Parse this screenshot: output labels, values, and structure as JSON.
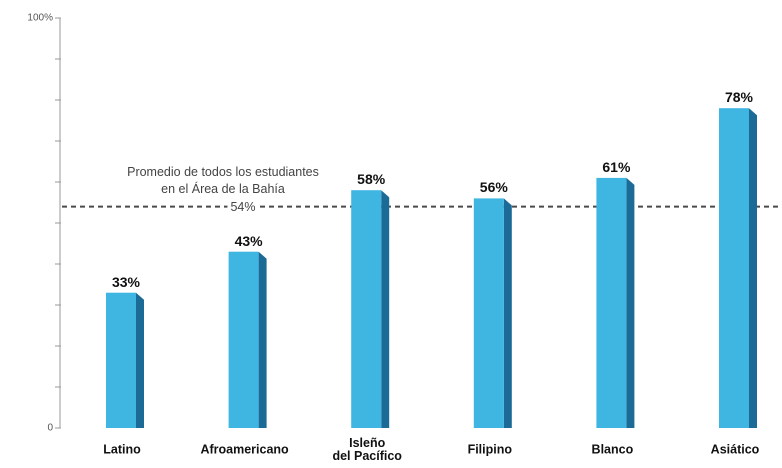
{
  "chart_data": {
    "type": "bar",
    "categories": [
      "Latino",
      "Afroamericano",
      "Isleño\ndel Pacífico",
      "Filipino",
      "Blanco",
      "Asiático"
    ],
    "values": [
      33,
      43,
      58,
      56,
      61,
      78
    ],
    "data_labels": [
      "33%",
      "43%",
      "58%",
      "56%",
      "61%",
      "78%"
    ],
    "ylim": [
      0,
      100
    ],
    "y_ticks": [
      0,
      10,
      20,
      30,
      40,
      50,
      60,
      70,
      80,
      90,
      100
    ],
    "y_tick_labels": [
      {
        "value": 0,
        "label": "0"
      },
      {
        "value": 100,
        "label": "100%"
      }
    ],
    "reference_line": {
      "value": 54,
      "style": "dashed",
      "label_lines": [
        "Promedio de todos los estudiantes",
        "en el Área de la Bahía"
      ],
      "value_label": "54%"
    },
    "grid": false,
    "colors": {
      "bar_front": "#3fb6e1",
      "bar_side": "#1c6b96",
      "reference_line": "#4a4a4a",
      "axis": "#9a9a9a"
    }
  }
}
